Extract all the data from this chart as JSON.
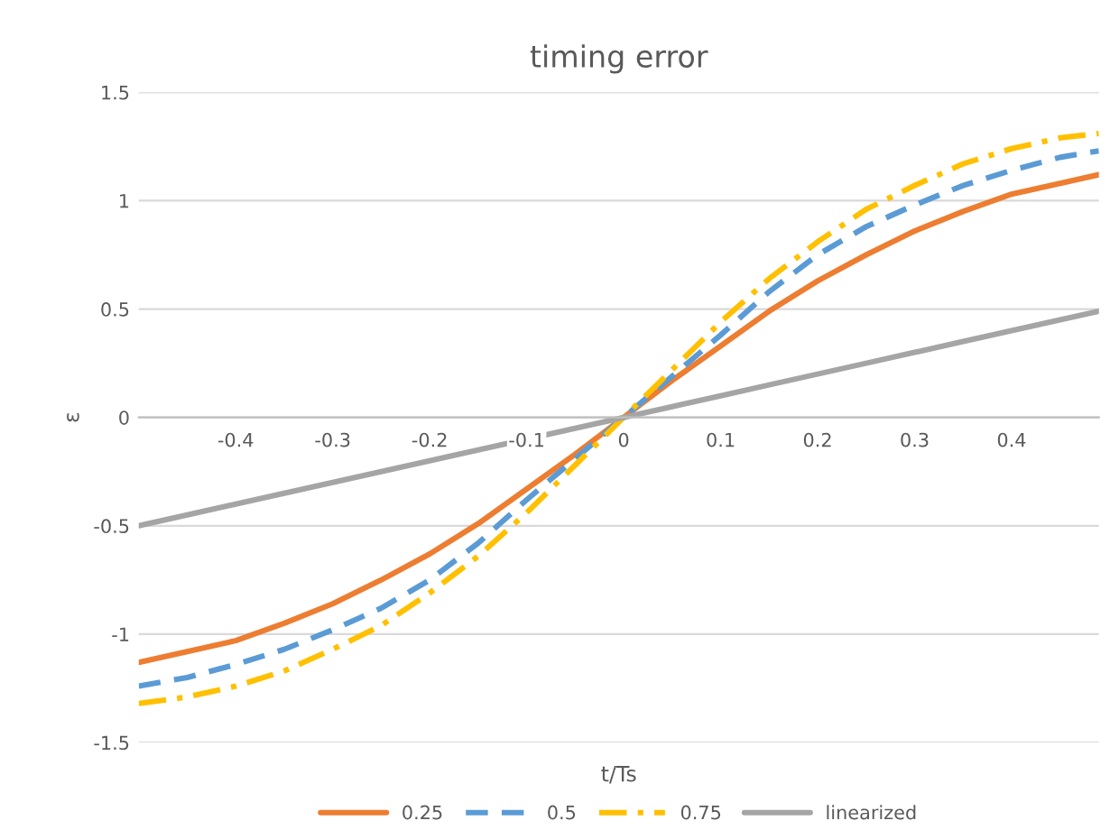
{
  "chart_data": {
    "type": "line",
    "title": "timing error",
    "xlabel": "t/Ts",
    "ylabel": "ε",
    "x": [
      -0.5,
      -0.45,
      -0.4,
      -0.35,
      -0.3,
      -0.25,
      -0.2,
      -0.15,
      -0.1,
      -0.05,
      0,
      0.05,
      0.1,
      0.15,
      0.2,
      0.25,
      0.3,
      0.35,
      0.4,
      0.45,
      0.49
    ],
    "series": [
      {
        "name": "0.25",
        "color": "#ed7d31",
        "line_style": "solid",
        "values": [
          -1.13,
          -1.08,
          -1.03,
          -0.95,
          -0.86,
          -0.75,
          -0.63,
          -0.49,
          -0.33,
          -0.17,
          0,
          0.17,
          0.33,
          0.49,
          0.63,
          0.75,
          0.86,
          0.95,
          1.03,
          1.08,
          1.12
        ]
      },
      {
        "name": "0.5",
        "color": "#5b9bd5",
        "line_style": "dashed",
        "values": [
          -1.24,
          -1.2,
          -1.14,
          -1.07,
          -0.98,
          -0.88,
          -0.75,
          -0.58,
          -0.38,
          -0.19,
          0,
          0.19,
          0.38,
          0.58,
          0.75,
          0.88,
          0.98,
          1.07,
          1.14,
          1.2,
          1.23
        ]
      },
      {
        "name": "0.75",
        "color": "#ffc000",
        "line_style": "dashdot",
        "values": [
          -1.32,
          -1.29,
          -1.24,
          -1.17,
          -1.07,
          -0.96,
          -0.81,
          -0.64,
          -0.44,
          -0.22,
          0,
          0.22,
          0.44,
          0.64,
          0.81,
          0.96,
          1.07,
          1.17,
          1.24,
          1.29,
          1.31
        ]
      },
      {
        "name": "linearized",
        "color": "#a5a5a5",
        "line_style": "solid",
        "values": [
          -0.5,
          -0.45,
          -0.4,
          -0.35,
          -0.3,
          -0.25,
          -0.2,
          -0.15,
          -0.1,
          -0.05,
          0,
          0.05,
          0.1,
          0.15,
          0.2,
          0.25,
          0.3,
          0.35,
          0.4,
          0.45,
          0.49
        ]
      }
    ],
    "xlim": [
      -0.5,
      0.49
    ],
    "xticks": [
      -0.4,
      -0.3,
      -0.2,
      -0.1,
      0,
      0.1,
      0.2,
      0.3,
      0.4
    ],
    "ylim": [
      -1.5,
      1.5
    ],
    "yticks": [
      -1.5,
      -1,
      -0.5,
      0,
      0.5,
      1,
      1.5
    ],
    "grid": "y",
    "legend": "bottom",
    "marker": "none"
  }
}
